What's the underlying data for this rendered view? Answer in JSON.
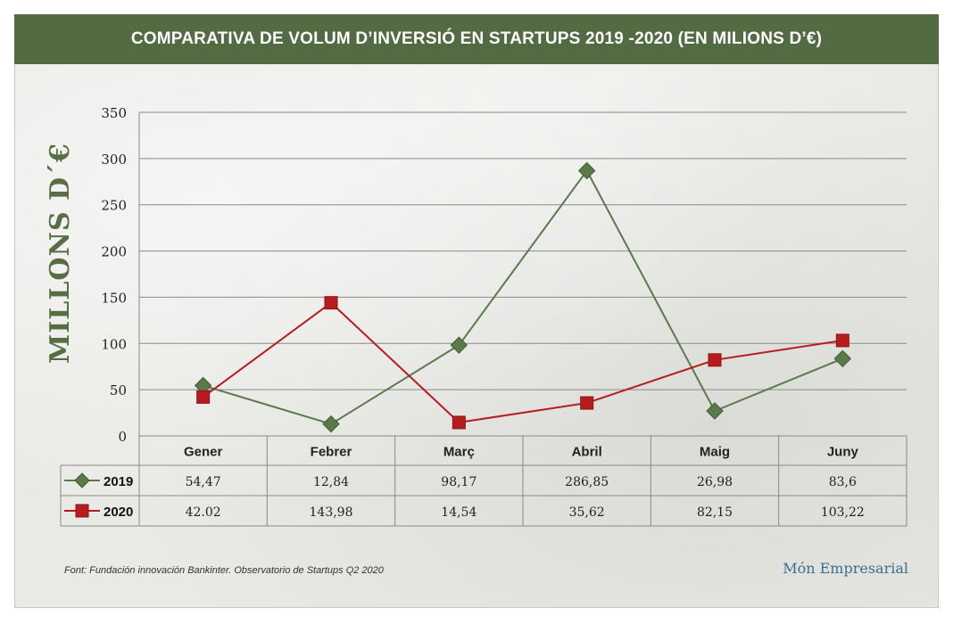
{
  "title": "COMPARATIVA DE VOLUM D’INVERSIÓ EN STARTUPS 2019 -2020 (EN MILIONS D’€)",
  "source": "Font: Fundación innovación Bankinter. Observatorio de Startups Q2 2020",
  "brand": "Món Empresarial",
  "chart_data": {
    "type": "line",
    "categories": [
      "Gener",
      "Febrer",
      "Març",
      "Abril",
      "Maig",
      "Juny"
    ],
    "ylabel": "MILLONS D´€",
    "ylim": [
      0,
      350
    ],
    "yticks": [
      0,
      50,
      100,
      150,
      200,
      250,
      300,
      350
    ],
    "grid": true,
    "series": [
      {
        "name": "2019",
        "color": "#5a7a4a",
        "marker": "diamond",
        "values": [
          54.47,
          12.84,
          98.17,
          286.85,
          26.98,
          83.6
        ],
        "labels": [
          "54,47",
          "12,84",
          "98,17",
          "286,85",
          "26,98",
          "83,6"
        ]
      },
      {
        "name": "2020",
        "color": "#b71c1c",
        "marker": "square",
        "values": [
          42.02,
          143.98,
          14.54,
          35.62,
          82.15,
          103.22
        ],
        "labels": [
          "42.02",
          "143,98",
          "14,54",
          "35,62",
          "82,15",
          "103,22"
        ]
      }
    ]
  }
}
